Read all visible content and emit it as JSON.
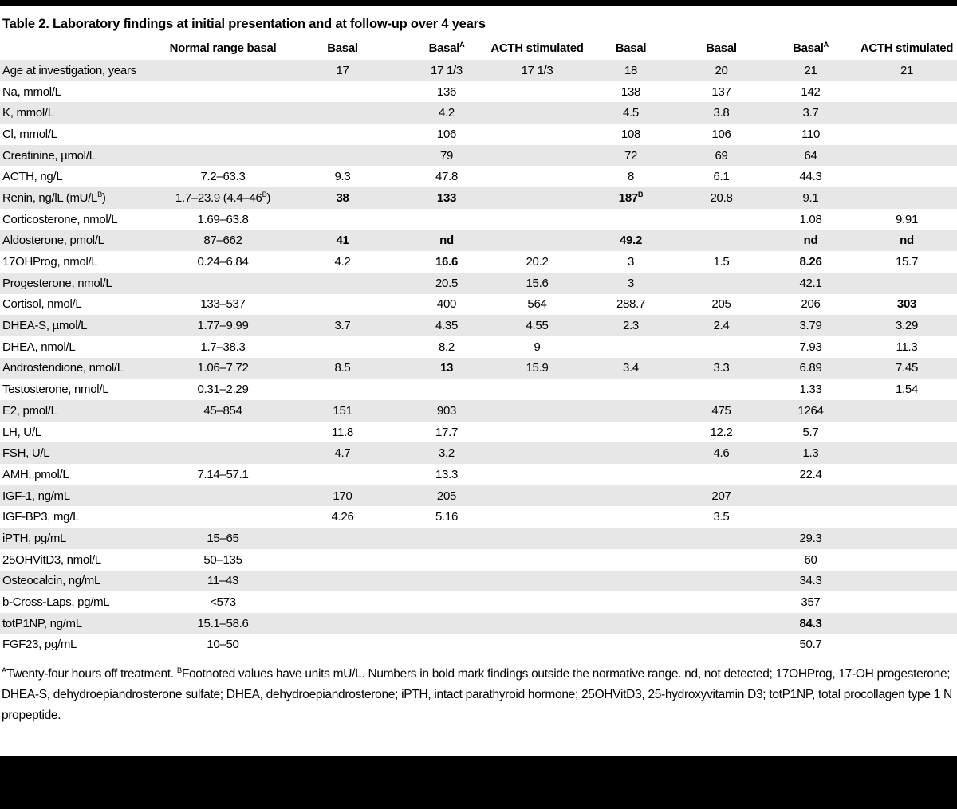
{
  "title": "Table 2. Laboratory findings at initial presentation and at follow-up over 4 years",
  "table": {
    "columns": [
      {
        "label": ""
      },
      {
        "label": "Normal range basal"
      },
      {
        "label": "Basal"
      },
      {
        "label": "Basal",
        "sup": "A"
      },
      {
        "label": "ACTH stimulated"
      },
      {
        "label": "Basal"
      },
      {
        "label": "Basal"
      },
      {
        "label": "Basal",
        "sup": "A"
      },
      {
        "label": "ACTH stimulated"
      }
    ],
    "rows": [
      {
        "label": "Age at investigation, years",
        "cells": [
          "",
          "17",
          "17 1/3",
          "17 1/3",
          "18",
          "20",
          "21",
          "21"
        ]
      },
      {
        "label": "Na, mmol/L",
        "cells": [
          "",
          "",
          "136",
          "",
          "138",
          "137",
          "142",
          ""
        ]
      },
      {
        "label": "K, mmol/L",
        "cells": [
          "",
          "",
          "4.2",
          "",
          "4.5",
          "3.8",
          "3.7",
          ""
        ]
      },
      {
        "label": "Cl, mmol/L",
        "cells": [
          "",
          "",
          "106",
          "",
          "108",
          "106",
          "110",
          ""
        ]
      },
      {
        "label": "Creatinine, µmol/L",
        "cells": [
          "",
          "",
          "79",
          "",
          "72",
          "69",
          "64",
          ""
        ]
      },
      {
        "label": "ACTH, ng/L",
        "cells": [
          "7.2–63.3",
          "9.3",
          "47.8",
          "",
          "8",
          "6.1",
          "44.3",
          ""
        ]
      },
      {
        "label": {
          "t": "Renin, ng/lL (mU/L",
          "sup": "B",
          "after": ")"
        },
        "cells": [
          {
            "t": "1.7–23.9 (4.4–46",
            "sup": "B",
            "after": ")"
          },
          {
            "t": "38",
            "b": true
          },
          {
            "t": "133",
            "b": true
          },
          "",
          {
            "t": "187",
            "sup": "B",
            "b": true
          },
          "20.8",
          "9.1",
          ""
        ]
      },
      {
        "label": "Corticosterone, nmol/L",
        "cells": [
          "1.69–63.8",
          "",
          "",
          "",
          "",
          "",
          "1.08",
          "9.91"
        ]
      },
      {
        "label": "Aldosterone, pmol/L",
        "cells": [
          "87–662",
          {
            "t": "41",
            "b": true
          },
          {
            "t": "nd",
            "b": true
          },
          "",
          {
            "t": "49.2",
            "b": true
          },
          "",
          {
            "t": "nd",
            "b": true
          },
          {
            "t": "nd",
            "b": true
          }
        ]
      },
      {
        "label": "17OHProg, nmol/L",
        "cells": [
          "0.24–6.84",
          "4.2",
          {
            "t": "16.6",
            "b": true
          },
          "20.2",
          "3",
          "1.5",
          {
            "t": "8.26",
            "b": true
          },
          "15.7"
        ]
      },
      {
        "label": "Progesterone, nmol/L",
        "cells": [
          "",
          "",
          "20.5",
          "15.6",
          "3",
          "",
          "42.1",
          ""
        ]
      },
      {
        "label": "Cortisol, nmol/L",
        "cells": [
          "133–537",
          "",
          "400",
          "564",
          "288.7",
          "205",
          "206",
          {
            "t": "303",
            "b": true
          }
        ]
      },
      {
        "label": "DHEA-S, µmol/L",
        "cells": [
          "1.77–9.99",
          "3.7",
          "4.35",
          "4.55",
          "2.3",
          "2.4",
          "3.79",
          "3.29"
        ]
      },
      {
        "label": "DHEA, nmol/L",
        "cells": [
          "1.7–38.3",
          "",
          "8.2",
          "9",
          "",
          "",
          "7.93",
          "11.3"
        ]
      },
      {
        "label": "Androstendione, nmol/L",
        "cells": [
          "1.06–7.72",
          "8.5",
          {
            "t": "13",
            "b": true
          },
          "15.9",
          "3.4",
          "3.3",
          "6.89",
          "7.45"
        ]
      },
      {
        "label": "Testosterone, nmol/L",
        "cells": [
          "0.31–2.29",
          "",
          "",
          "",
          "",
          "",
          "1.33",
          "1.54"
        ]
      },
      {
        "label": "E2, pmol/L",
        "cells": [
          "45–854",
          "151",
          "903",
          "",
          "",
          "475",
          "1264",
          ""
        ]
      },
      {
        "label": "LH, U/L",
        "cells": [
          "",
          "11.8",
          "17.7",
          "",
          "",
          "12.2",
          "5.7",
          ""
        ]
      },
      {
        "label": "FSH, U/L",
        "cells": [
          "",
          "4.7",
          "3.2",
          "",
          "",
          "4.6",
          "1.3",
          ""
        ]
      },
      {
        "label": "AMH, pmol/L",
        "cells": [
          "7.14–57.1",
          "",
          "13.3",
          "",
          "",
          "",
          "22.4",
          ""
        ]
      },
      {
        "label": "IGF-1, ng/mL",
        "cells": [
          "",
          "170",
          "205",
          "",
          "",
          "207",
          "",
          ""
        ]
      },
      {
        "label": "IGF-BP3, mg/L",
        "cells": [
          "",
          "4.26",
          "5.16",
          "",
          "",
          "3.5",
          "",
          ""
        ]
      },
      {
        "label": "iPTH, pg/mL",
        "cells": [
          "15–65",
          "",
          "",
          "",
          "",
          "",
          "29.3",
          ""
        ]
      },
      {
        "label": "25OHVitD3, nmol/L",
        "cells": [
          "50–135",
          "",
          "",
          "",
          "",
          "",
          "60",
          ""
        ]
      },
      {
        "label": "Osteocalcin, ng/mL",
        "cells": [
          "11–43",
          "",
          "",
          "",
          "",
          "",
          "34.3",
          ""
        ]
      },
      {
        "label": "b-Cross-Laps, pg/mL",
        "cells": [
          "<573",
          "",
          "",
          "",
          "",
          "",
          "357",
          ""
        ]
      },
      {
        "label": "totP1NP, ng/mL",
        "cells": [
          "15.1–58.6",
          "",
          "",
          "",
          "",
          "",
          {
            "t": "84.3",
            "b": true
          },
          ""
        ]
      },
      {
        "label": "FGF23, pg/mL",
        "cells": [
          "10–50",
          "",
          "",
          "",
          "",
          "",
          "50.7",
          ""
        ]
      }
    ]
  },
  "footnote": {
    "segments": [
      {
        "sup": "A"
      },
      {
        "t": "Twenty-four hours off treatment. "
      },
      {
        "sup": "B"
      },
      {
        "t": "Footnoted values have units mU/L. Numbers in bold mark findings outside the normative range. nd, not detected; 17OHProg, 17-OH progesterone; DHEA-S, dehydroepiandrosterone sulfate; DHEA, dehydroepiandrosterone; iPTH, intact parathyroid hormone; 25OHVitD3, 25-hydroxyvitamin D3; totP1NP, total procollagen type 1 N propeptide."
      }
    ]
  }
}
